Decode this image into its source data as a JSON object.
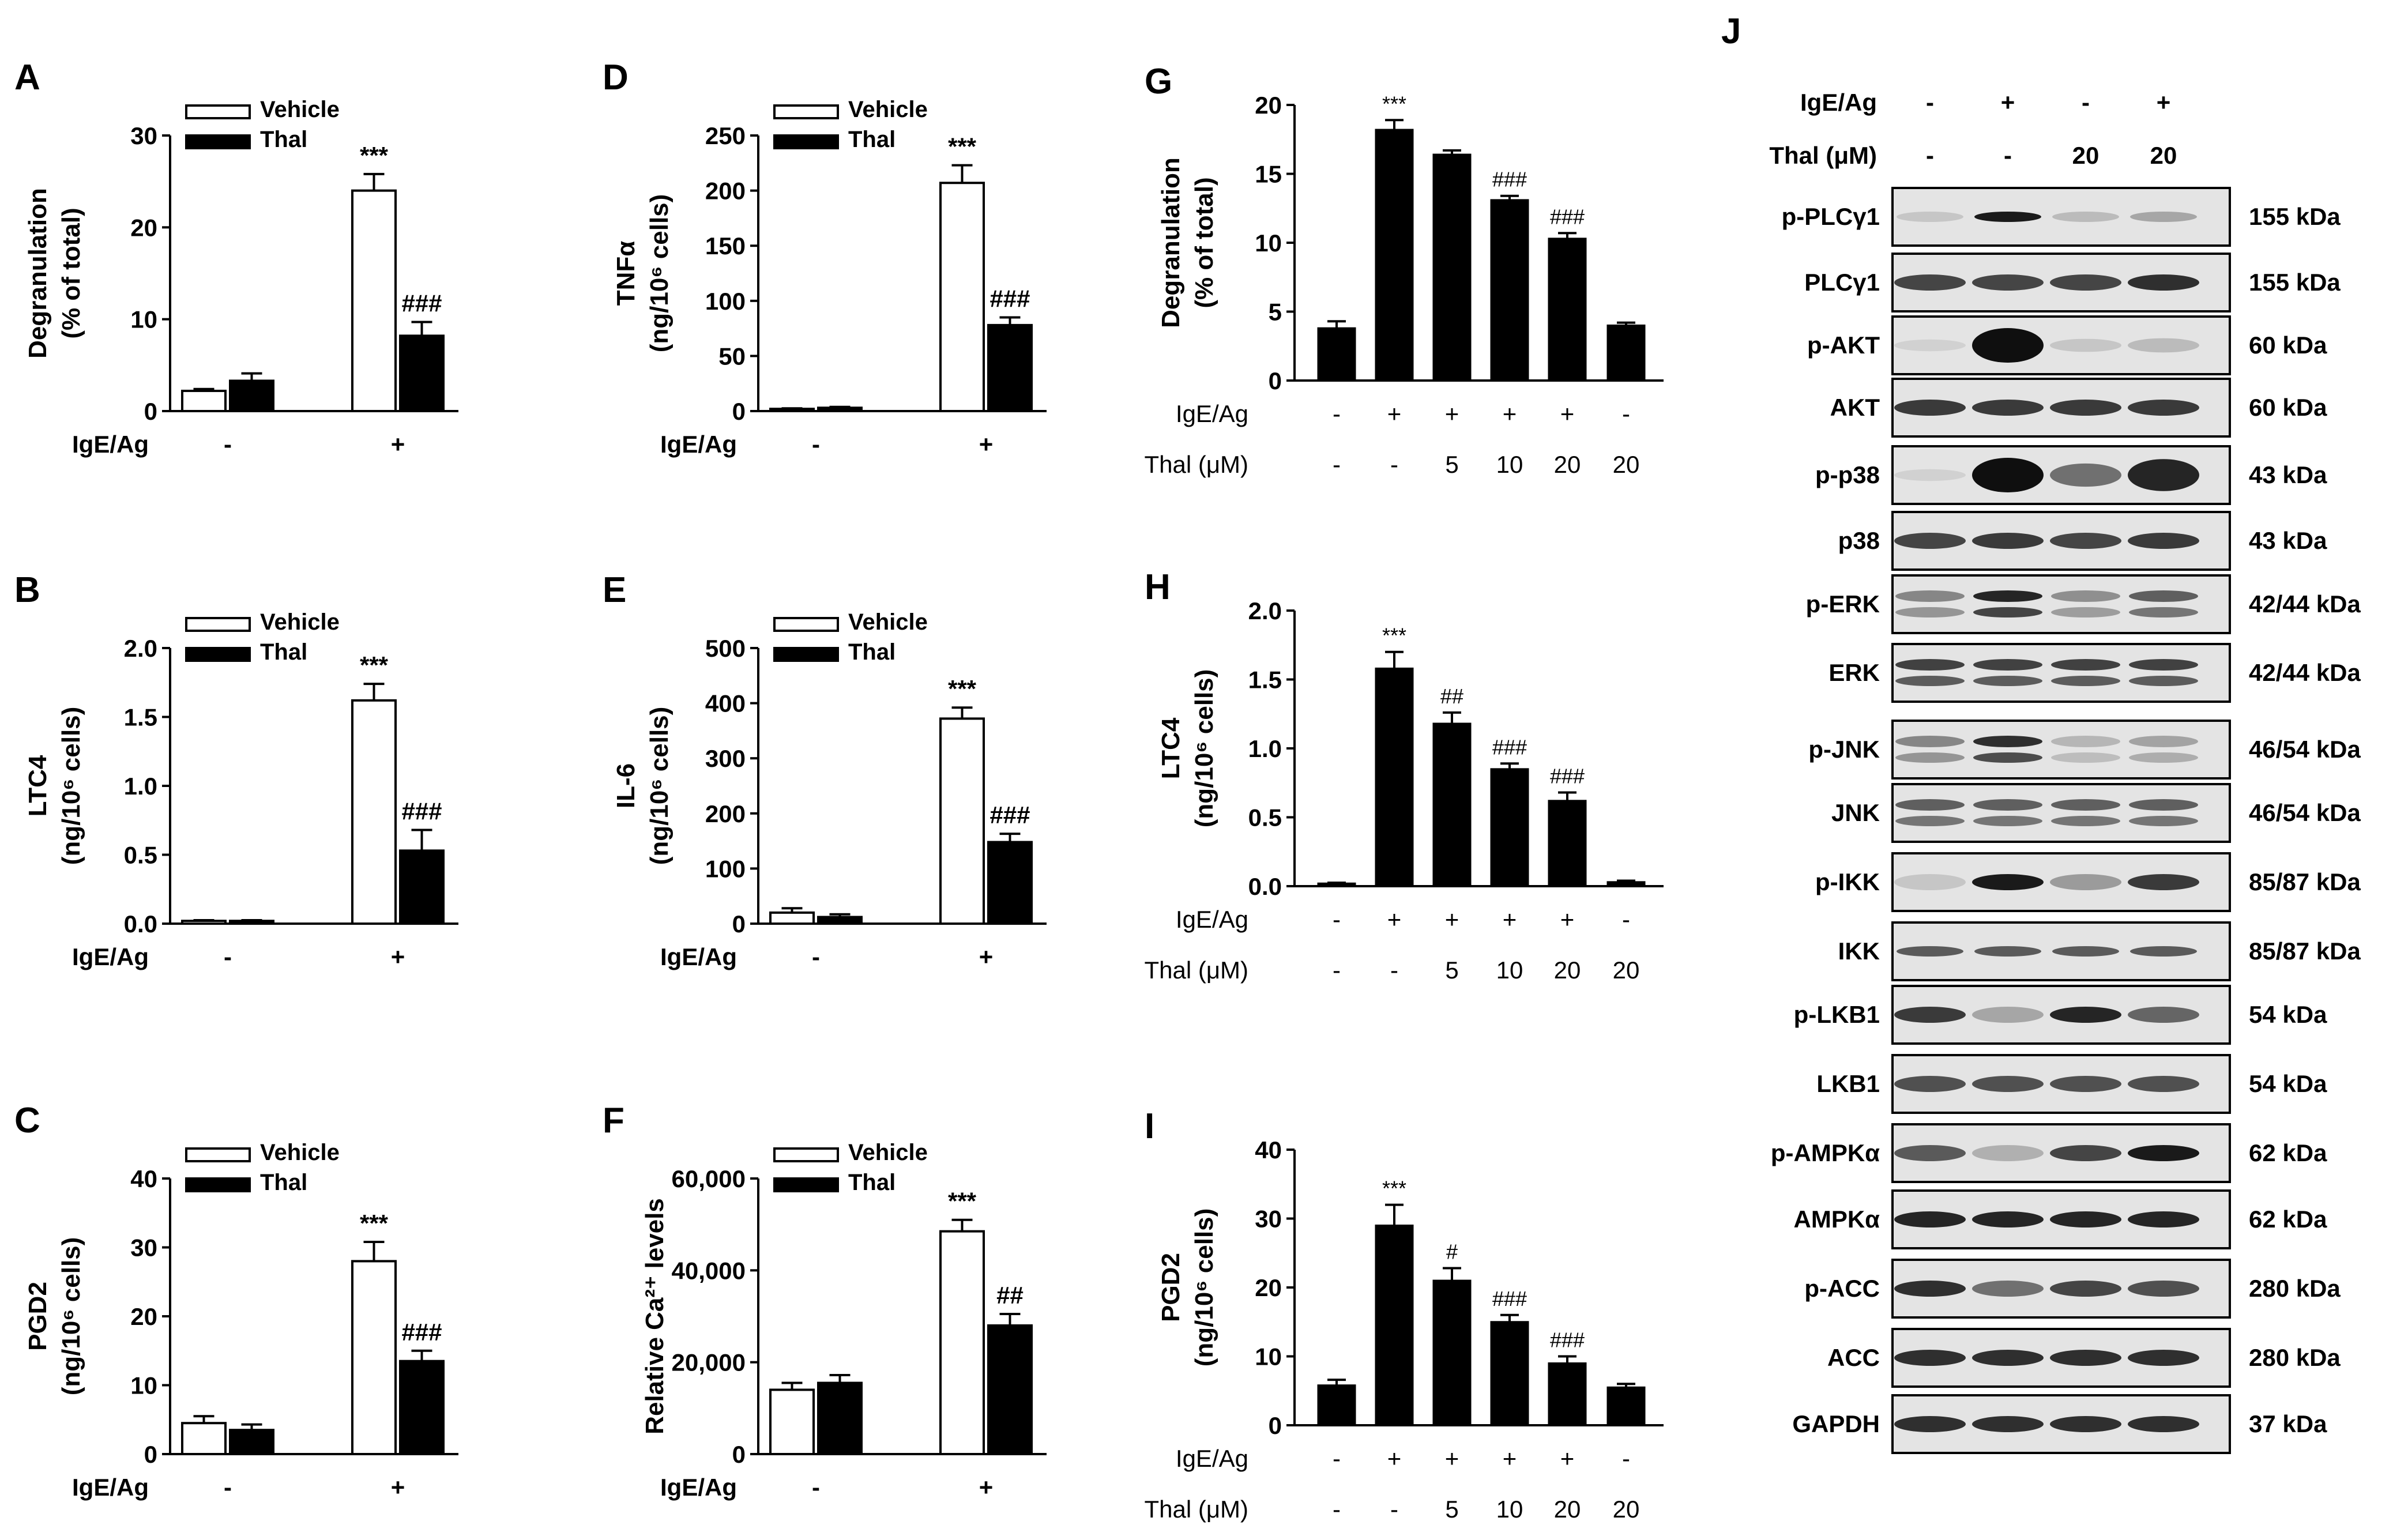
{
  "colors": {
    "vehicle": "#ffffff",
    "thal": "#000000",
    "axis": "#000000"
  },
  "chart_data": [
    {
      "panel": "A",
      "type": "bar",
      "ylabel": [
        "Degranulation",
        "(% of total)"
      ],
      "ylim": [
        0,
        30
      ],
      "yticks": [
        "0",
        "10",
        "20",
        "30"
      ],
      "xaxis_label": "IgE/Ag",
      "categories": [
        "-",
        "+"
      ],
      "legend": [
        "Vehicle",
        "Thal"
      ],
      "series": [
        {
          "name": "Vehicle",
          "values": [
            2.2,
            24
          ],
          "errors": [
            0.2,
            1.8
          ]
        },
        {
          "name": "Thal",
          "values": [
            3.3,
            8.2
          ],
          "errors": [
            0.8,
            1.5
          ]
        }
      ],
      "annotations": [
        {
          "series": "Vehicle",
          "index": 1,
          "text": "***"
        },
        {
          "series": "Thal",
          "index": 1,
          "text": "###"
        }
      ]
    },
    {
      "panel": "B",
      "type": "bar",
      "ylabel": [
        "LTC4",
        "(ng/10⁶ cells)"
      ],
      "ylim": [
        0,
        2
      ],
      "yticks": [
        "0.0",
        "0.5",
        "1.0",
        "1.5",
        "2.0"
      ],
      "xaxis_label": "IgE/Ag",
      "categories": [
        "-",
        "+"
      ],
      "legend": [
        "Vehicle",
        "Thal"
      ],
      "series": [
        {
          "name": "Vehicle",
          "values": [
            0.02,
            1.62
          ],
          "errors": [
            0.005,
            0.12
          ]
        },
        {
          "name": "Thal",
          "values": [
            0.02,
            0.53
          ],
          "errors": [
            0.005,
            0.15
          ]
        }
      ],
      "annotations": [
        {
          "series": "Vehicle",
          "index": 1,
          "text": "***"
        },
        {
          "series": "Thal",
          "index": 1,
          "text": "###"
        }
      ]
    },
    {
      "panel": "C",
      "type": "bar",
      "ylabel": [
        "PGD2",
        "(ng/10⁶ cells)"
      ],
      "ylim": [
        0,
        40
      ],
      "yticks": [
        "0",
        "10",
        "20",
        "30",
        "40"
      ],
      "xaxis_label": "IgE/Ag",
      "categories": [
        "-",
        "+"
      ],
      "legend": [
        "Vehicle",
        "Thal"
      ],
      "series": [
        {
          "name": "Vehicle",
          "values": [
            4.5,
            28
          ],
          "errors": [
            1.0,
            2.8
          ]
        },
        {
          "name": "Thal",
          "values": [
            3.5,
            13.5
          ],
          "errors": [
            0.8,
            1.5
          ]
        }
      ],
      "annotations": [
        {
          "series": "Vehicle",
          "index": 1,
          "text": "***"
        },
        {
          "series": "Thal",
          "index": 1,
          "text": "###"
        }
      ]
    },
    {
      "panel": "D",
      "type": "bar",
      "ylabel": [
        "TNFα",
        "(ng/10⁶ cells)"
      ],
      "ylim": [
        0,
        250
      ],
      "yticks": [
        "0",
        "50",
        "100",
        "150",
        "200",
        "250"
      ],
      "xaxis_label": "IgE/Ag",
      "categories": [
        "-",
        "+"
      ],
      "legend": [
        "Vehicle",
        "Thal"
      ],
      "series": [
        {
          "name": "Vehicle",
          "values": [
            2,
            207
          ],
          "errors": [
            0.5,
            16
          ]
        },
        {
          "name": "Thal",
          "values": [
            3,
            78
          ],
          "errors": [
            0.8,
            7
          ]
        }
      ],
      "annotations": [
        {
          "series": "Vehicle",
          "index": 1,
          "text": "***"
        },
        {
          "series": "Thal",
          "index": 1,
          "text": "###"
        }
      ]
    },
    {
      "panel": "E",
      "type": "bar",
      "ylabel": [
        "IL-6",
        "(ng/10⁶ cells)"
      ],
      "ylim": [
        0,
        500
      ],
      "yticks": [
        "0",
        "100",
        "200",
        "300",
        "400",
        "500"
      ],
      "xaxis_label": "IgE/Ag",
      "categories": [
        "-",
        "+"
      ],
      "legend": [
        "Vehicle",
        "Thal"
      ],
      "series": [
        {
          "name": "Vehicle",
          "values": [
            20,
            372
          ],
          "errors": [
            8,
            20
          ]
        },
        {
          "name": "Thal",
          "values": [
            12,
            148
          ],
          "errors": [
            5,
            15
          ]
        }
      ],
      "annotations": [
        {
          "series": "Vehicle",
          "index": 1,
          "text": "***"
        },
        {
          "series": "Thal",
          "index": 1,
          "text": "###"
        }
      ]
    },
    {
      "panel": "F",
      "type": "bar",
      "ylabel": [
        "Relative Ca²⁺ levels"
      ],
      "ylim": [
        0,
        60000
      ],
      "yticks": [
        "0",
        "20,000",
        "40,000",
        "60,000"
      ],
      "xaxis_label": "IgE/Ag",
      "categories": [
        "-",
        "+"
      ],
      "legend": [
        "Vehicle",
        "Thal"
      ],
      "series": [
        {
          "name": "Vehicle",
          "values": [
            14000,
            48500
          ],
          "errors": [
            1500,
            2500
          ]
        },
        {
          "name": "Thal",
          "values": [
            15500,
            28000
          ],
          "errors": [
            1700,
            2500
          ]
        }
      ],
      "annotations": [
        {
          "series": "Vehicle",
          "index": 1,
          "text": "***"
        },
        {
          "series": "Thal",
          "index": 1,
          "text": "##"
        }
      ]
    },
    {
      "panel": "G",
      "type": "bar",
      "ylabel": [
        "Degranulation",
        "(% of total)"
      ],
      "ylim": [
        0,
        20
      ],
      "yticks": [
        "0",
        "5",
        "10",
        "15",
        "20"
      ],
      "row_labels": [
        "IgE/Ag",
        "Thal (μM)"
      ],
      "rows": [
        [
          "-",
          "+",
          "+",
          "+",
          "+",
          "-"
        ],
        [
          "-",
          "-",
          "5",
          "10",
          "20",
          "20"
        ]
      ],
      "values": [
        3.8,
        18.2,
        16.4,
        13.1,
        10.3,
        4.0
      ],
      "errors": [
        0.5,
        0.7,
        0.3,
        0.3,
        0.4,
        0.2
      ],
      "annotations": [
        "",
        "***",
        "",
        "###",
        "###",
        ""
      ]
    },
    {
      "panel": "H",
      "type": "bar",
      "ylabel": [
        "LTC4",
        "(ng/10⁶ cells)"
      ],
      "ylim": [
        0,
        2
      ],
      "yticks": [
        "0.0",
        "0.5",
        "1.0",
        "1.5",
        "2.0"
      ],
      "row_labels": [
        "IgE/Ag",
        "Thal (μM)"
      ],
      "rows": [
        [
          "-",
          "+",
          "+",
          "+",
          "+",
          "-"
        ],
        [
          "-",
          "-",
          "5",
          "10",
          "20",
          "20"
        ]
      ],
      "values": [
        0.02,
        1.58,
        1.18,
        0.85,
        0.62,
        0.03
      ],
      "errors": [
        0.005,
        0.12,
        0.08,
        0.04,
        0.06,
        0.01
      ],
      "annotations": [
        "",
        "***",
        "##",
        "###",
        "###",
        ""
      ]
    },
    {
      "panel": "I",
      "type": "bar",
      "ylabel": [
        "PGD2",
        "(ng/10⁶ cells)"
      ],
      "ylim": [
        0,
        40
      ],
      "yticks": [
        "0",
        "10",
        "20",
        "30",
        "40"
      ],
      "row_labels": [
        "IgE/Ag",
        "Thal (μM)"
      ],
      "rows": [
        [
          "-",
          "+",
          "+",
          "+",
          "+",
          "-"
        ],
        [
          "-",
          "-",
          "5",
          "10",
          "20",
          "20"
        ]
      ],
      "values": [
        5.8,
        29,
        21,
        15,
        9,
        5.5
      ],
      "errors": [
        0.8,
        3.0,
        1.8,
        1.0,
        1.0,
        0.5
      ],
      "annotations": [
        "",
        "***",
        "#",
        "###",
        "###",
        ""
      ]
    }
  ],
  "western": {
    "panel": "J",
    "header_labels": [
      "IgE/Ag",
      "Thal (μM)"
    ],
    "header_rows": [
      [
        "-",
        "+",
        "-",
        "+"
      ],
      [
        "-",
        "-",
        "20",
        "20"
      ]
    ],
    "blots": [
      {
        "name": "p-PLCγ1",
        "size": "155 kDa",
        "intensity": [
          0.15,
          0.95,
          0.2,
          0.3
        ],
        "style": "thin"
      },
      {
        "name": "PLCγ1",
        "size": "155 kDa",
        "intensity": [
          0.75,
          0.75,
          0.75,
          0.85
        ],
        "style": "normal"
      },
      {
        "name": "p-AKT",
        "size": "60 kDa",
        "intensity": [
          0.1,
          1.0,
          0.15,
          0.2
        ],
        "style": "blob"
      },
      {
        "name": "AKT",
        "size": "60 kDa",
        "intensity": [
          0.8,
          0.8,
          0.8,
          0.8
        ],
        "style": "normal"
      },
      {
        "name": "p-p38",
        "size": "43 kDa",
        "intensity": [
          0.1,
          1.0,
          0.55,
          0.9
        ],
        "style": "blob"
      },
      {
        "name": "p38",
        "size": "43 kDa",
        "intensity": [
          0.75,
          0.8,
          0.75,
          0.8
        ],
        "style": "normal"
      },
      {
        "name": "p-ERK",
        "size": "42/44 kDa",
        "intensity": [
          0.5,
          1.0,
          0.45,
          0.7
        ],
        "style": "double"
      },
      {
        "name": "ERK",
        "size": "42/44 kDa",
        "intensity": [
          0.85,
          0.85,
          0.85,
          0.85
        ],
        "style": "double"
      },
      {
        "name": "p-JNK",
        "size": "46/54 kDa",
        "intensity": [
          0.5,
          0.95,
          0.25,
          0.35
        ],
        "style": "double"
      },
      {
        "name": "JNK",
        "size": "46/54 kDa",
        "intensity": [
          0.7,
          0.7,
          0.7,
          0.7
        ],
        "style": "double"
      },
      {
        "name": "p-IKK",
        "size": "85/87 kDa",
        "intensity": [
          0.15,
          0.95,
          0.35,
          0.8
        ],
        "style": "normal"
      },
      {
        "name": "IKK",
        "size": "85/87 kDa",
        "intensity": [
          0.65,
          0.65,
          0.65,
          0.65
        ],
        "style": "thin"
      },
      {
        "name": "p-LKB1",
        "size": "54 kDa",
        "intensity": [
          0.8,
          0.3,
          0.9,
          0.6
        ],
        "style": "normal"
      },
      {
        "name": "LKB1",
        "size": "54 kDa",
        "intensity": [
          0.7,
          0.7,
          0.7,
          0.7
        ],
        "style": "normal"
      },
      {
        "name": "p-AMPKα",
        "size": "62 kDa",
        "intensity": [
          0.65,
          0.25,
          0.75,
          0.95
        ],
        "style": "normal"
      },
      {
        "name": "AMPKα",
        "size": "62 kDa",
        "intensity": [
          0.9,
          0.9,
          0.9,
          0.9
        ],
        "style": "normal"
      },
      {
        "name": "p-ACC",
        "size": "280 kDa",
        "intensity": [
          0.85,
          0.55,
          0.75,
          0.7
        ],
        "style": "normal"
      },
      {
        "name": "ACC",
        "size": "280 kDa",
        "intensity": [
          0.85,
          0.85,
          0.85,
          0.85
        ],
        "style": "normal"
      },
      {
        "name": "GAPDH",
        "size": "37 kDa",
        "intensity": [
          0.85,
          0.85,
          0.85,
          0.85
        ],
        "style": "normal"
      }
    ]
  }
}
